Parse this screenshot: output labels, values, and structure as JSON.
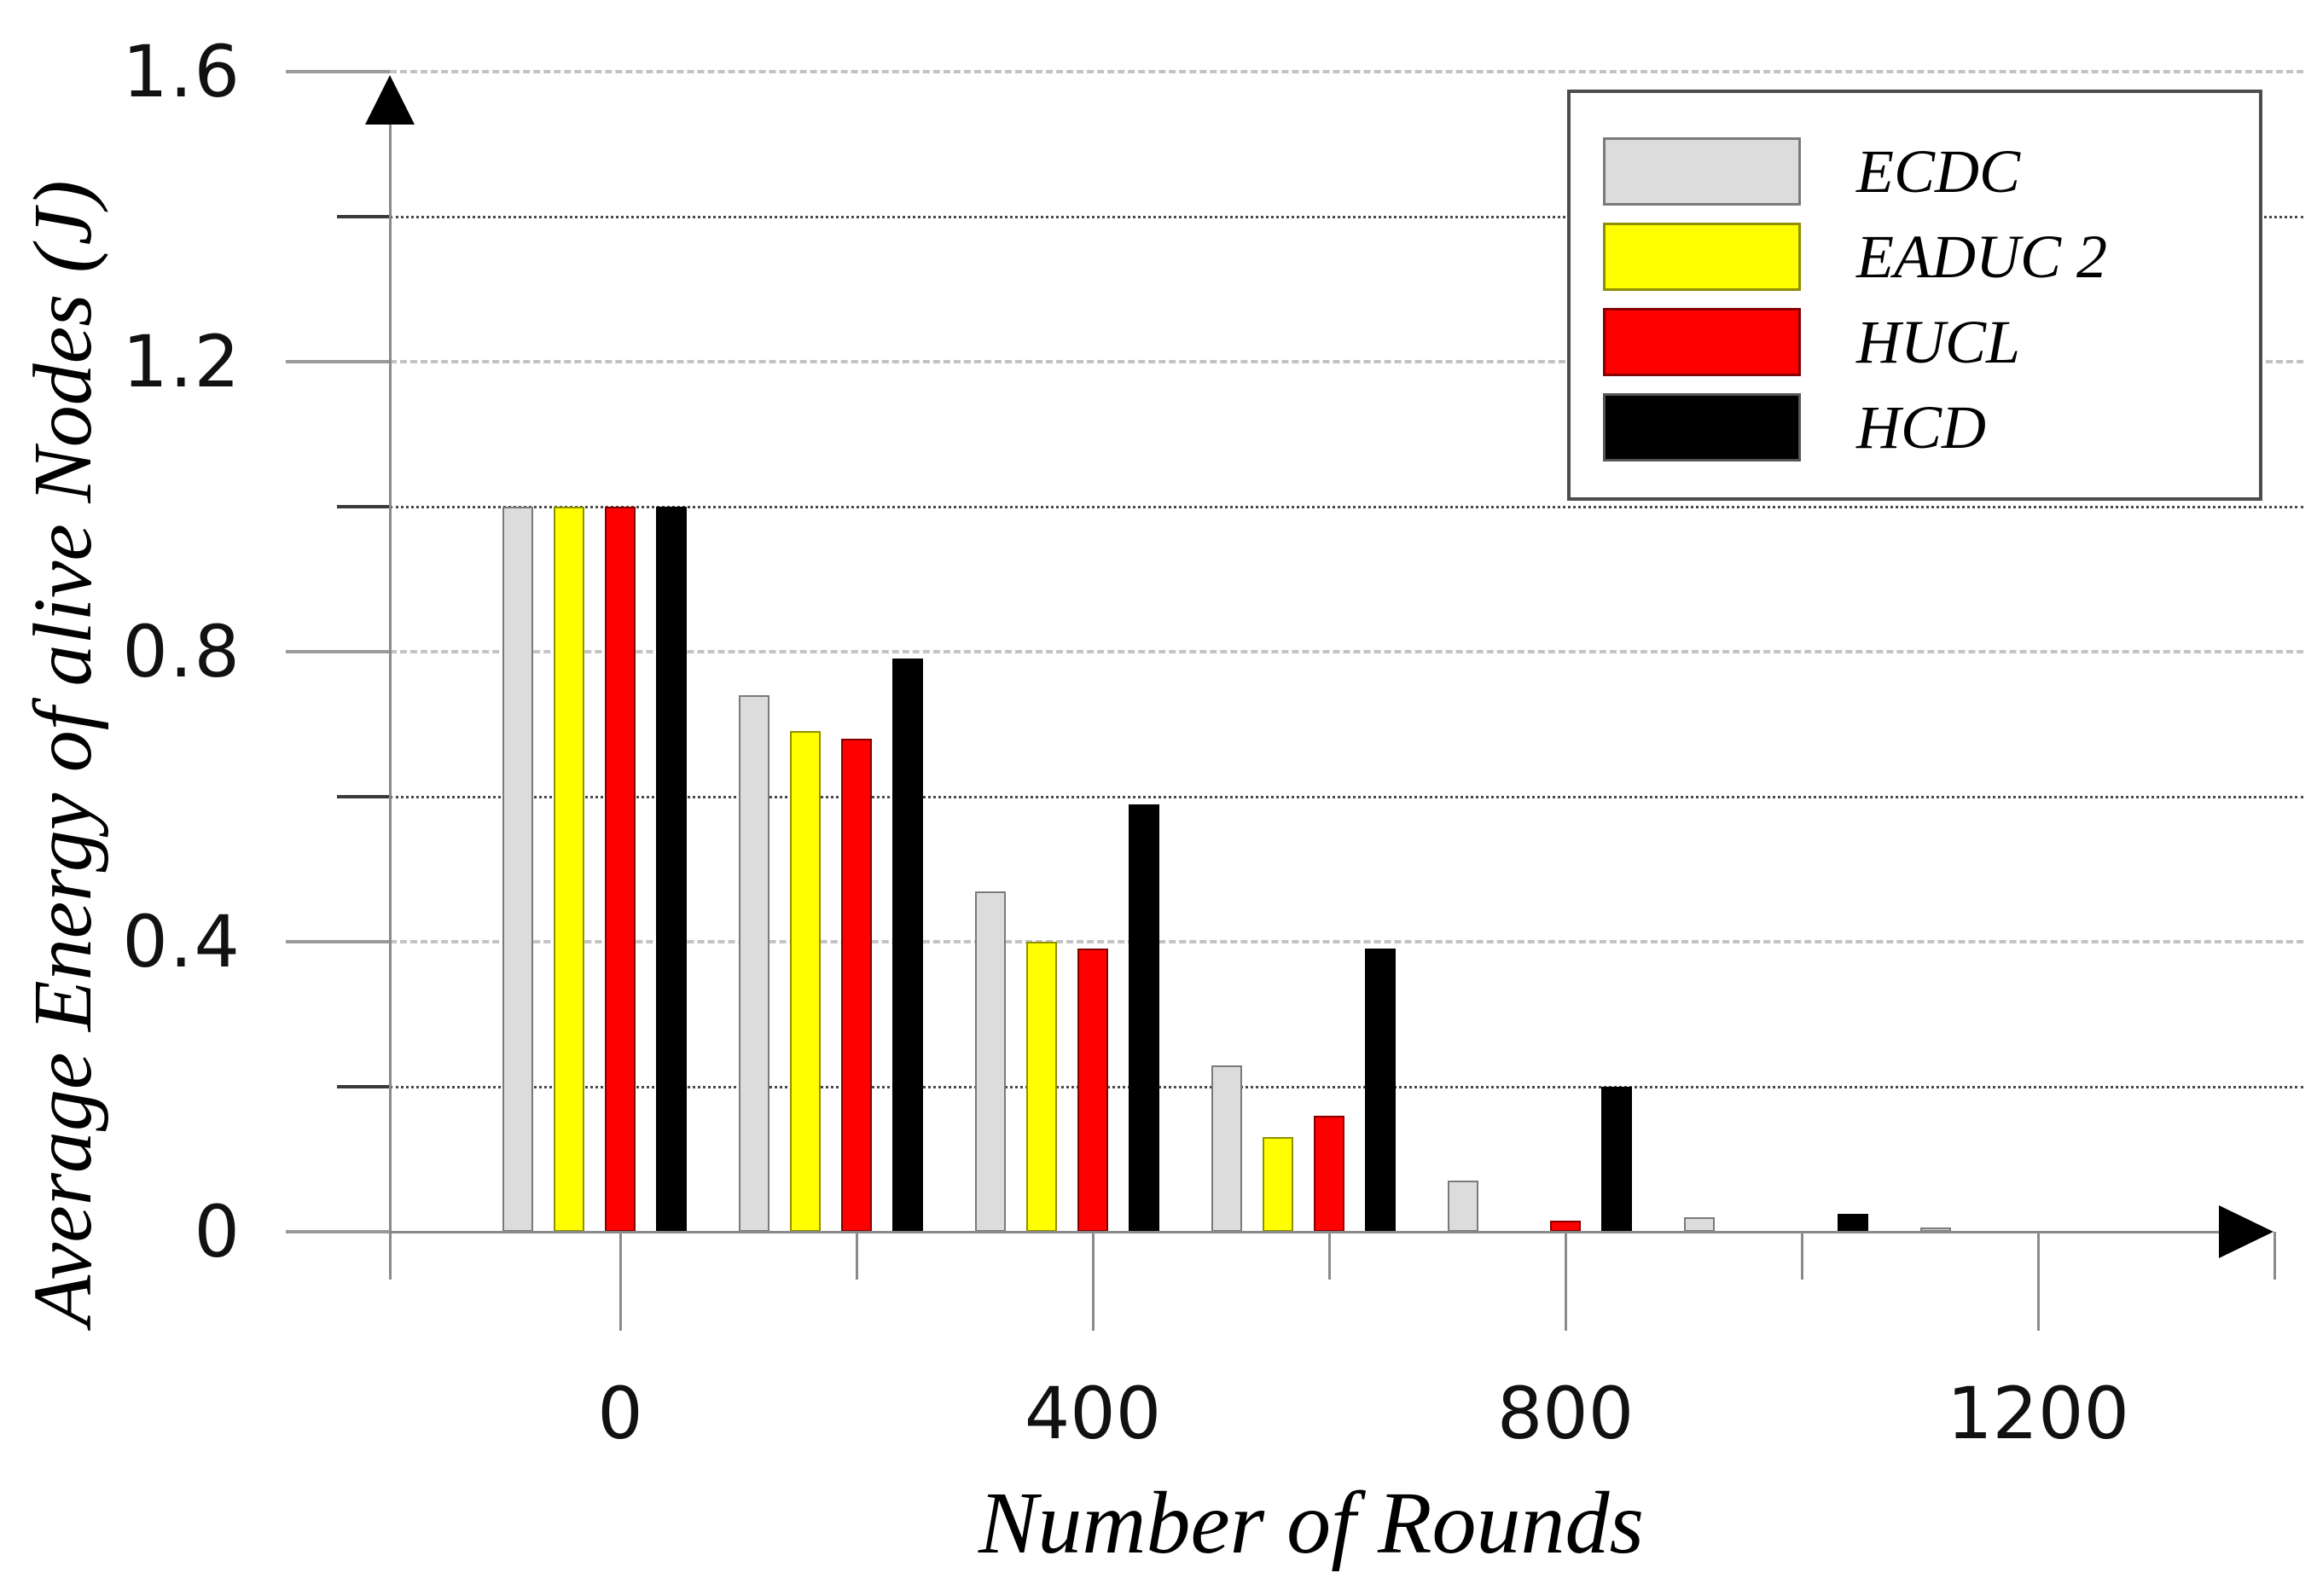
{
  "chart_data": {
    "type": "bar",
    "title": "",
    "xlabel": "Number of Rounds",
    "ylabel": "Average Energy of alive Nodes (J)",
    "categories": [
      0,
      200,
      400,
      600,
      800,
      1000,
      1200
    ],
    "series": [
      {
        "name": "ECDC",
        "color": "#dcdcdc",
        "border_color": "#7a7a7a",
        "values": [
          1.0,
          0.74,
          0.47,
          0.23,
          0.07,
          0.02,
          0.006
        ]
      },
      {
        "name": "EADUC 2",
        "color": "#ffff00",
        "border_color": "#8f8f00",
        "values": [
          1.0,
          0.69,
          0.4,
          0.13,
          0,
          0,
          0
        ]
      },
      {
        "name": "HUCL",
        "color": "#ff0000",
        "border_color": "#870000",
        "values": [
          1.0,
          0.68,
          0.39,
          0.16,
          0.015,
          0,
          0
        ]
      },
      {
        "name": "HCD",
        "color": "#000000",
        "border_color": "#000000",
        "values": [
          1.0,
          0.79,
          0.59,
          0.39,
          0.2,
          0.025,
          0
        ]
      }
    ],
    "ylim": [
      0,
      1.6
    ],
    "y_major_ticks": [
      {
        "value": 0,
        "label": "0"
      },
      {
        "value": 0.4,
        "label": "0.4"
      },
      {
        "value": 0.8,
        "label": "0.8"
      },
      {
        "value": 1.2,
        "label": "1.2"
      },
      {
        "value": 1.6,
        "label": "1.6"
      }
    ],
    "y_minor_ticks": [
      0.2,
      0.6,
      1.0,
      1.4
    ],
    "x_major_ticks": [
      {
        "value": 0,
        "label": "0"
      },
      {
        "value": 400,
        "label": "400"
      },
      {
        "value": 800,
        "label": "800"
      },
      {
        "value": 1200,
        "label": "1200"
      }
    ],
    "x_minor_ticks": [
      200,
      600,
      1000,
      1400
    ],
    "grid": "horizontal",
    "legend_position": "top-right",
    "axis_color": "#8a8a8a",
    "arrow_color": "#000000"
  }
}
